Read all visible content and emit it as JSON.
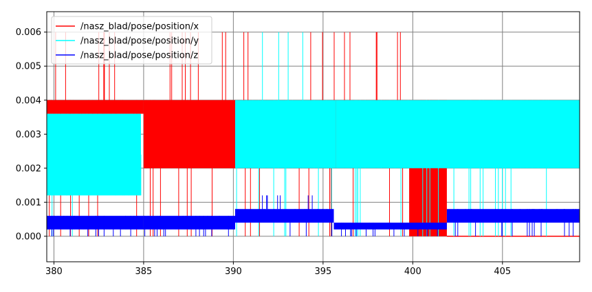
{
  "chart_data": {
    "type": "line",
    "title": "",
    "xlabel": "",
    "ylabel": "",
    "xlim": [
      379.6,
      409.3
    ],
    "ylim": [
      -0.00075,
      0.0066
    ],
    "grid": true,
    "legend_position": "top-left",
    "x_ticks": [
      380,
      385,
      390,
      395,
      400,
      405
    ],
    "x_tick_labels": [
      "380",
      "385",
      "390",
      "395",
      "400",
      "405"
    ],
    "y_ticks": [
      0.0,
      0.001,
      0.002,
      0.003,
      0.004,
      0.005,
      0.006
    ],
    "y_tick_labels": [
      "0.000",
      "0.001",
      "0.002",
      "0.003",
      "0.004",
      "0.005",
      "0.006"
    ],
    "series": [
      {
        "name": "/nasz_blad/pose/position/x",
        "color": "#ff0000",
        "segments": [
          {
            "x_start": 379.6,
            "x_end": 385.0,
            "levels": [
              0.0,
              0.002,
              0.004,
              0.006
            ],
            "dense_band": [
              0.0036,
              0.004
            ]
          },
          {
            "x_start": 385.0,
            "x_end": 390.1,
            "levels": [
              0.0,
              0.002,
              0.004,
              0.006
            ],
            "dense_band": [
              0.002,
              0.004
            ]
          },
          {
            "x_start": 390.1,
            "x_end": 395.6,
            "levels": [
              0.0,
              0.002,
              0.004,
              0.006
            ],
            "dense_band": [
              0.002,
              0.004
            ]
          },
          {
            "x_start": 395.6,
            "x_end": 399.8,
            "levels": [
              0.0,
              0.002,
              0.004,
              0.006
            ],
            "dense_band": [
              0.002,
              0.004
            ]
          },
          {
            "x_start": 399.8,
            "x_end": 401.9,
            "levels": [
              0.0,
              0.002,
              0.004
            ],
            "dense_band": [
              0.0,
              0.004
            ]
          },
          {
            "x_start": 401.9,
            "x_end": 409.3,
            "levels": [
              0.0
            ],
            "dense_band": [
              0.0,
              0.0
            ]
          }
        ]
      },
      {
        "name": "/nasz_blad/pose/position/y",
        "color": "#00ffff",
        "segments": [
          {
            "x_start": 379.6,
            "x_end": 384.85,
            "levels": [
              0.0,
              0.0012,
              0.0024,
              0.0036
            ],
            "dense_band": [
              0.0012,
              0.0036
            ]
          },
          {
            "x_start": 390.1,
            "x_end": 395.7,
            "levels": [
              0.0,
              0.002,
              0.004,
              0.006
            ],
            "dense_band": [
              0.002,
              0.004
            ]
          },
          {
            "x_start": 395.7,
            "x_end": 409.3,
            "levels": [
              0.0,
              0.002,
              0.004
            ],
            "dense_band": [
              0.002,
              0.004
            ]
          }
        ]
      },
      {
        "name": "/nasz_blad/pose/position/z",
        "color": "#0000ff",
        "segments": [
          {
            "x_start": 379.6,
            "x_end": 385.0,
            "levels": [
              0.0,
              0.0002,
              0.0004,
              0.0006
            ],
            "dense_band": [
              0.0002,
              0.0006
            ]
          },
          {
            "x_start": 385.0,
            "x_end": 390.1,
            "levels": [
              0.0,
              0.0002,
              0.0004,
              0.0006
            ],
            "dense_band": [
              0.0002,
              0.0006
            ]
          },
          {
            "x_start": 390.1,
            "x_end": 395.6,
            "levels": [
              0.0,
              0.0004,
              0.0008,
              0.0012
            ],
            "dense_band": [
              0.0004,
              0.0008
            ]
          },
          {
            "x_start": 395.6,
            "x_end": 401.9,
            "levels": [
              0.0,
              0.0002,
              0.0004
            ],
            "dense_band": [
              0.0002,
              0.0004
            ]
          },
          {
            "x_start": 401.9,
            "x_end": 409.3,
            "levels": [
              0.0,
              0.0004,
              0.0008
            ],
            "dense_band": [
              0.0004,
              0.0008
            ]
          }
        ]
      }
    ]
  }
}
